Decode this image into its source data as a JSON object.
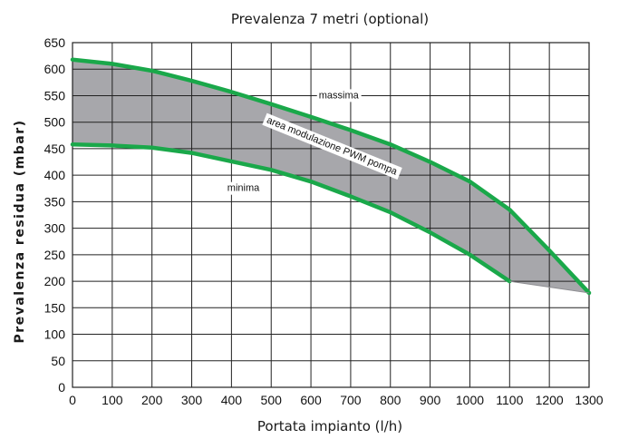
{
  "chart_data": {
    "type": "area",
    "title": "Prevalenza 7 metri (optional)",
    "xlabel": "Portata impianto (l/h)",
    "ylabel": "Prevalenza residua (mbar)",
    "xlim": [
      0,
      1300
    ],
    "ylim": [
      0,
      650
    ],
    "xticks": [
      0,
      100,
      200,
      300,
      400,
      500,
      600,
      700,
      800,
      900,
      1000,
      1100,
      1200,
      1300
    ],
    "yticks": [
      0,
      50,
      100,
      150,
      200,
      250,
      300,
      350,
      400,
      450,
      500,
      550,
      600,
      650
    ],
    "grid": true,
    "series": [
      {
        "name": "massima",
        "color": "#1aa84a",
        "x": [
          0,
          100,
          200,
          300,
          400,
          500,
          600,
          700,
          800,
          900,
          1000,
          1100,
          1200,
          1300
        ],
        "y": [
          618,
          610,
          597,
          578,
          557,
          534,
          510,
          485,
          458,
          425,
          388,
          335,
          258,
          178
        ]
      },
      {
        "name": "minima",
        "color": "#1aa84a",
        "x": [
          0,
          100,
          200,
          300,
          400,
          500,
          600,
          700,
          800,
          900,
          1000,
          1100
        ],
        "y": [
          458,
          456,
          452,
          442,
          426,
          410,
          388,
          360,
          330,
          292,
          250,
          200
        ]
      }
    ],
    "closing_edge": {
      "x": [
        1100,
        1300
      ],
      "y": [
        200,
        178
      ]
    },
    "band_color": "#a7a7ab",
    "annotations": [
      {
        "text": "massima",
        "x": 670,
        "y": 545
      },
      {
        "text": "minima",
        "x": 430,
        "y": 370
      },
      {
        "text": "area modulazione PWM pompa",
        "x": 650,
        "y": 450,
        "angle": -22
      }
    ]
  }
}
